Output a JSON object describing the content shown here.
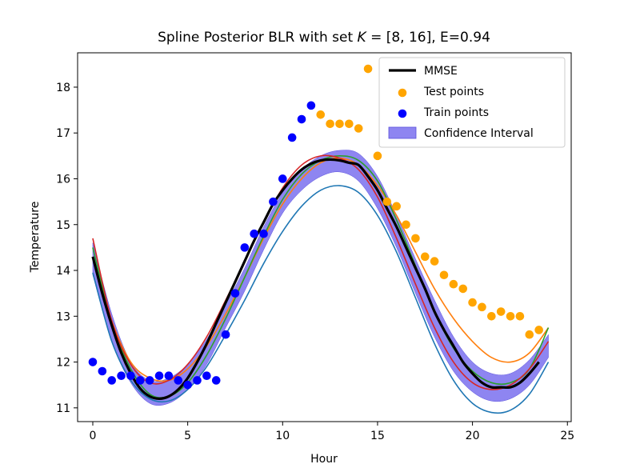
{
  "chart_data": {
    "type": "line",
    "title": "Spline Posterior BLR with set K = [8, 16], E=0.94",
    "title_parts": {
      "prefix": "Spline Posterior BLR with set ",
      "k_symbol": "K",
      "k_value": " = [8, 16], E=0.94"
    },
    "xlabel": "Hour",
    "ylabel": "Temperature",
    "xlim": [
      -0.8,
      25.2
    ],
    "ylim": [
      10.7,
      18.75
    ],
    "xticks": [
      0,
      5,
      10,
      15,
      20,
      25
    ],
    "yticks": [
      11,
      12,
      13,
      14,
      15,
      16,
      17,
      18
    ],
    "legend": {
      "position": "top-right",
      "entries": [
        {
          "label": "MMSE",
          "kind": "line",
          "color": "#000000"
        },
        {
          "label": "Test points",
          "kind": "marker",
          "color": "#ffa500"
        },
        {
          "label": "Train points",
          "kind": "marker",
          "color": "#0000ff"
        },
        {
          "label": "Confidence Interval",
          "kind": "patch",
          "color": "#7a70ee"
        }
      ]
    },
    "train_points": {
      "x": [
        0,
        0.5,
        1,
        1.5,
        2,
        2.5,
        3,
        3.5,
        4,
        4.5,
        5,
        5.5,
        6,
        6.5,
        7,
        7.5,
        8,
        8.5,
        9,
        9.5,
        10,
        10.5,
        11,
        11.5
      ],
      "y": [
        12.0,
        11.8,
        11.6,
        11.7,
        11.7,
        11.6,
        11.6,
        11.7,
        11.7,
        11.6,
        11.5,
        11.6,
        11.7,
        11.6,
        12.6,
        13.5,
        14.5,
        14.8,
        14.8,
        15.5,
        16.0,
        16.9,
        17.3,
        17.6
      ]
    },
    "test_points": {
      "x": [
        12,
        12.5,
        13,
        13.5,
        14,
        14.5,
        15,
        15.5,
        16,
        16.5,
        17,
        17.5,
        18,
        18.5,
        19,
        19.5,
        20,
        20.5,
        21,
        21.5,
        22,
        22.5,
        23,
        23.5
      ],
      "y": [
        17.4,
        17.2,
        17.2,
        17.2,
        17.1,
        18.4,
        16.5,
        15.5,
        15.4,
        15.0,
        14.7,
        14.3,
        14.2,
        13.9,
        13.7,
        13.6,
        13.3,
        13.2,
        13.0,
        13.1,
        13.0,
        13.0,
        12.6,
        12.7
      ]
    },
    "mmse": {
      "x": [
        0,
        0.5,
        1,
        1.5,
        2,
        2.5,
        3,
        3.5,
        4,
        4.5,
        5,
        5.5,
        6,
        6.5,
        7,
        7.5,
        8,
        8.5,
        9,
        9.5,
        10,
        10.5,
        11,
        11.5,
        12,
        12.5,
        13,
        13.5,
        14,
        14.5,
        15,
        15.5,
        16,
        16.5,
        17,
        17.5,
        18,
        18.5,
        19,
        19.5,
        20,
        20.5,
        21,
        21.5,
        22,
        22.5,
        23,
        23.5
      ],
      "y": [
        14.3,
        13.5,
        12.8,
        12.2,
        11.75,
        11.42,
        11.25,
        11.2,
        11.25,
        11.4,
        11.65,
        12.0,
        12.4,
        12.85,
        13.3,
        13.75,
        14.2,
        14.65,
        15.05,
        15.45,
        15.75,
        16.0,
        16.2,
        16.33,
        16.4,
        16.42,
        16.4,
        16.35,
        16.3,
        16.05,
        15.75,
        15.35,
        14.95,
        14.5,
        14.05,
        13.6,
        13.1,
        12.7,
        12.35,
        12.0,
        11.75,
        11.55,
        11.45,
        11.45,
        11.45,
        11.55,
        11.75,
        12.0
      ]
    },
    "ci": {
      "x": [
        0,
        1,
        2,
        3,
        4,
        5,
        6,
        7,
        8,
        9,
        10,
        11,
        12,
        13,
        14,
        15,
        16,
        17,
        18,
        19,
        20,
        21,
        22,
        23,
        24
      ],
      "lower": [
        13.9,
        12.45,
        11.55,
        11.1,
        11.1,
        11.4,
        11.95,
        12.75,
        13.55,
        14.45,
        15.25,
        15.75,
        16.05,
        16.15,
        15.95,
        15.35,
        14.5,
        13.5,
        12.55,
        11.8,
        11.35,
        11.15,
        11.2,
        11.5,
        12.1
      ],
      "upper": [
        14.6,
        13.05,
        12.0,
        11.6,
        11.65,
        11.95,
        12.5,
        13.25,
        14.05,
        14.95,
        15.7,
        16.2,
        16.5,
        16.62,
        16.55,
        16.05,
        15.2,
        14.25,
        13.35,
        12.55,
        12.0,
        11.75,
        11.75,
        12.05,
        12.6
      ]
    },
    "series": [
      {
        "color": "#ff7f0e",
        "x": [
          0,
          1,
          2,
          3,
          4,
          5,
          6,
          7,
          8,
          9,
          10,
          11,
          12,
          13,
          14,
          15,
          16,
          17,
          18,
          19,
          20,
          21,
          22,
          23,
          24
        ],
        "y": [
          14.3,
          12.9,
          12.0,
          11.65,
          11.6,
          11.85,
          12.35,
          13.05,
          13.85,
          14.7,
          15.45,
          16.0,
          16.35,
          16.45,
          16.3,
          15.85,
          15.2,
          14.4,
          13.6,
          12.95,
          12.45,
          12.1,
          12.0,
          12.2,
          12.75
        ]
      },
      {
        "color": "#2ca02c",
        "x": [
          0,
          1,
          2,
          3,
          4,
          5,
          6,
          7,
          8,
          9,
          10,
          11,
          12,
          13,
          14,
          15,
          16,
          17,
          18,
          19,
          20,
          21,
          22,
          23,
          24
        ],
        "y": [
          14.5,
          12.85,
          11.85,
          11.3,
          11.25,
          11.55,
          12.15,
          12.95,
          13.85,
          14.75,
          15.55,
          16.1,
          16.4,
          16.5,
          16.4,
          15.95,
          15.1,
          14.1,
          13.1,
          12.3,
          11.8,
          11.55,
          11.55,
          11.85,
          12.75
        ]
      },
      {
        "color": "#d62728",
        "x": [
          0,
          1,
          2,
          3,
          4,
          5,
          6,
          7,
          8,
          9,
          10,
          11,
          12,
          13,
          14,
          15,
          16,
          17,
          18,
          19,
          20,
          21,
          22,
          23,
          24
        ],
        "y": [
          14.7,
          12.9,
          11.95,
          11.55,
          11.6,
          11.95,
          12.55,
          13.35,
          14.2,
          15.05,
          15.8,
          16.3,
          16.5,
          16.45,
          16.2,
          15.6,
          14.7,
          13.7,
          12.75,
          12.0,
          11.55,
          11.4,
          11.5,
          11.85,
          12.45
        ]
      },
      {
        "color": "#1f77b4",
        "x": [
          0,
          1,
          2,
          3,
          4,
          5,
          6,
          7,
          8,
          9,
          10,
          11,
          12,
          13,
          14,
          15,
          16,
          17,
          18,
          19,
          20,
          21,
          22,
          23,
          24
        ],
        "y": [
          13.95,
          12.45,
          11.6,
          11.2,
          11.15,
          11.4,
          11.9,
          12.6,
          13.35,
          14.15,
          14.85,
          15.4,
          15.75,
          15.85,
          15.7,
          15.2,
          14.4,
          13.4,
          12.4,
          11.6,
          11.1,
          10.9,
          10.95,
          11.3,
          12.0
        ]
      }
    ]
  }
}
